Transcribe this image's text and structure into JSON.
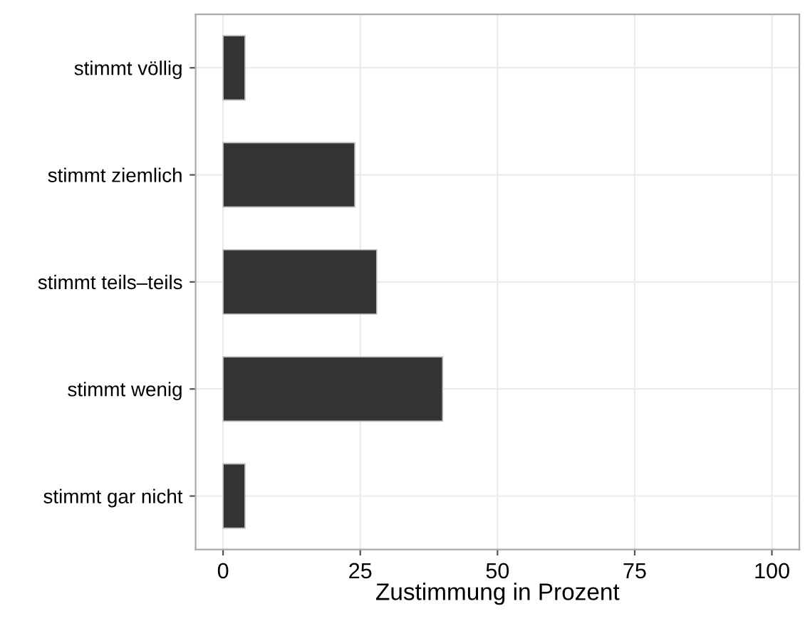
{
  "chart_data": {
    "type": "bar",
    "orientation": "horizontal",
    "categories": [
      "stimmt völlig",
      "stimmt ziemlich",
      "stimmt teils–teils",
      "stimmt wenig",
      "stimmt gar nicht"
    ],
    "values": [
      4,
      24,
      28,
      40,
      4
    ],
    "color": "#333333",
    "xlabel": "Zustimmung in Prozent",
    "xlim": [
      -5,
      105
    ],
    "xticks": [
      0,
      25,
      50,
      75,
      100
    ],
    "grid": true,
    "legend": false
  }
}
